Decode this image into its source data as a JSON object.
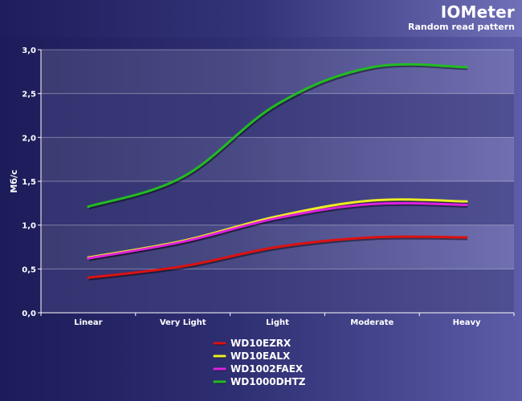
{
  "header": {
    "title": "IOMeter",
    "subtitle": "Random read pattern"
  },
  "chart_data": {
    "type": "line",
    "title": "IOMeter",
    "subtitle": "Random read pattern",
    "xlabel": "",
    "ylabel": "Мб/с",
    "categories": [
      "Linear",
      "Very Light",
      "Light",
      "Moderate",
      "Heavy"
    ],
    "ylim": [
      0,
      3
    ],
    "yticks": [
      "0,0",
      "0,5",
      "1,0",
      "1,5",
      "2,0",
      "2,5",
      "3,0"
    ],
    "grid": true,
    "legend_position": "bottom-center",
    "series": [
      {
        "name": "WD10EZRX",
        "color": "#dd1111",
        "values": [
          0.4,
          0.53,
          0.75,
          0.86,
          0.86
        ]
      },
      {
        "name": "WD10EALX",
        "color": "#eeee22",
        "values": [
          0.63,
          0.82,
          1.1,
          1.28,
          1.27
        ]
      },
      {
        "name": "WD1002FAEX",
        "color": "#dd22dd",
        "values": [
          0.62,
          0.81,
          1.08,
          1.24,
          1.23
        ]
      },
      {
        "name": "WD1000DHTZ",
        "color": "#22bb22",
        "values": [
          1.21,
          1.55,
          2.38,
          2.8,
          2.8
        ]
      }
    ]
  }
}
